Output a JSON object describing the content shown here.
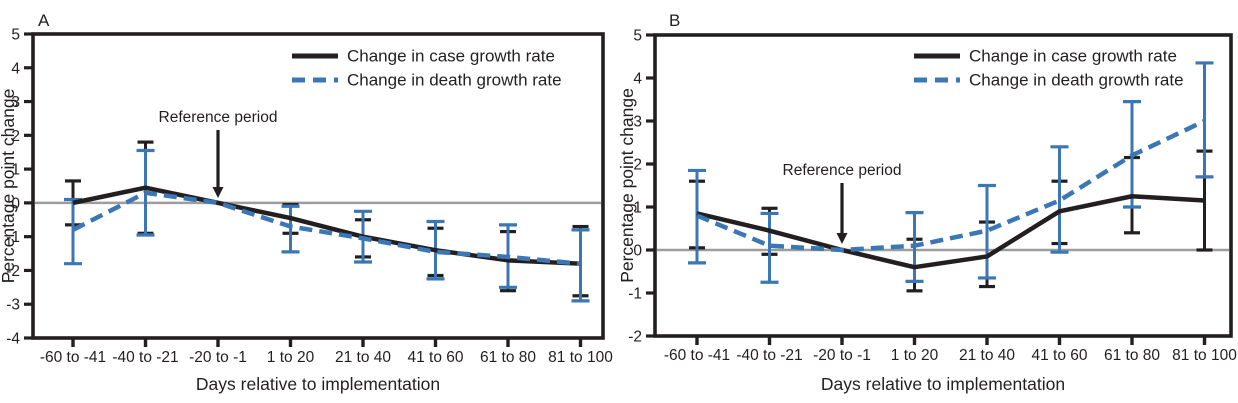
{
  "figure": {
    "background": "#ffffff",
    "frame_color": "#231f20",
    "zero_line_color": "#9b9d9f",
    "case_color": "#231f20",
    "death_color": "#3b76b5"
  },
  "chart_data": [
    {
      "type": "line",
      "panel": "A",
      "xlabel": "Days relative to implementation",
      "ylabel": "Percentage point change",
      "categories": [
        "-60 to -41",
        "-40 to -21",
        "-20 to -1",
        "1 to 20",
        "21 to 40",
        "41 to 60",
        "61 to 80",
        "81 to 100"
      ],
      "ylim": [
        -4,
        5
      ],
      "yticks": [
        5,
        4,
        3,
        2,
        1,
        0,
        -1,
        -2,
        -3,
        -4
      ],
      "grid": false,
      "zero_line": true,
      "legend_position": "top-right",
      "annotation": {
        "text": "Reference period",
        "category_index": 2,
        "points_to_y": 0
      },
      "series": [
        {
          "name": "Change in case growth rate",
          "style": "solid",
          "color": "#231f20",
          "values": [
            0.0,
            0.45,
            0.0,
            -0.45,
            -1.0,
            -1.4,
            -1.7,
            -1.8
          ],
          "ci_low": [
            -0.65,
            -0.9,
            null,
            -0.9,
            -1.6,
            -2.15,
            -2.6,
            -2.75
          ],
          "ci_high": [
            0.65,
            1.8,
            null,
            -0.05,
            -0.5,
            -0.75,
            -0.85,
            -0.7
          ]
        },
        {
          "name": "Change in death growth rate",
          "style": "dashed",
          "color": "#3b76b5",
          "values": [
            -0.8,
            0.3,
            0.0,
            -0.7,
            -1.05,
            -1.45,
            -1.6,
            -1.8
          ],
          "ci_low": [
            -1.8,
            -0.95,
            null,
            -1.45,
            -1.75,
            -2.25,
            -2.5,
            -2.9
          ],
          "ci_high": [
            0.1,
            1.55,
            null,
            -0.1,
            -0.25,
            -0.55,
            -0.65,
            -0.8
          ]
        }
      ]
    },
    {
      "type": "line",
      "panel": "B",
      "xlabel": "Days relative to implementation",
      "ylabel": "Percentage point change",
      "categories": [
        "-60 to -41",
        "-40 to -21",
        "-20 to -1",
        "1 to 20",
        "21 to 40",
        "41 to 60",
        "61 to 80",
        "81 to 100"
      ],
      "ylim": [
        -2,
        5
      ],
      "yticks": [
        5,
        4,
        3,
        2,
        1,
        0,
        -1,
        -2
      ],
      "grid": false,
      "zero_line": true,
      "legend_position": "top-right",
      "annotation": {
        "text": "Reference period",
        "category_index": 2,
        "points_to_y": 0
      },
      "series": [
        {
          "name": "Change in case growth rate",
          "style": "solid",
          "color": "#231f20",
          "values": [
            0.85,
            0.45,
            0.0,
            -0.4,
            -0.15,
            0.9,
            1.25,
            1.15
          ],
          "ci_low": [
            0.05,
            -0.1,
            null,
            -0.95,
            -0.85,
            0.15,
            0.4,
            0.0
          ],
          "ci_high": [
            1.6,
            0.97,
            null,
            0.25,
            0.65,
            1.6,
            2.15,
            2.3
          ]
        },
        {
          "name": "Change in death growth rate",
          "style": "dashed",
          "color": "#3b76b5",
          "values": [
            0.8,
            0.1,
            0.0,
            0.1,
            0.45,
            1.15,
            2.2,
            3.0
          ],
          "ci_low": [
            -0.3,
            -0.75,
            null,
            -0.73,
            -0.65,
            -0.05,
            1.0,
            1.7
          ],
          "ci_high": [
            1.85,
            0.85,
            null,
            0.87,
            1.5,
            2.4,
            3.45,
            4.35
          ]
        }
      ]
    }
  ]
}
